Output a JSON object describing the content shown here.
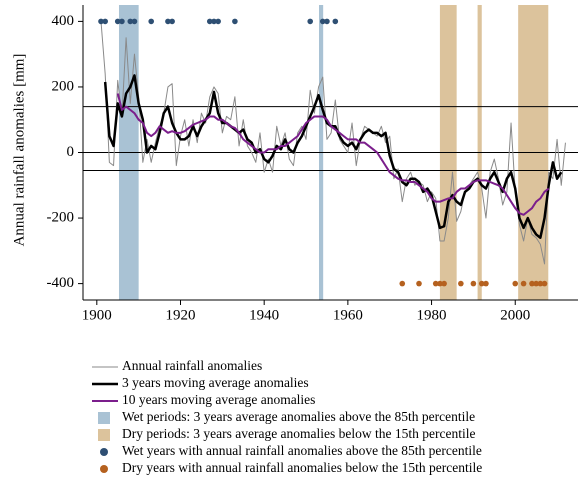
{
  "chart_data": {
    "type": "line",
    "y_label": "Annual rainfall anomalies [mm]",
    "xlim": [
      1896.7,
      2015
    ],
    "ylim": [
      -450,
      450
    ],
    "xticks": [
      1900,
      1920,
      1940,
      1960,
      1980,
      2000
    ],
    "yticks": [
      -400,
      -200,
      0,
      200,
      400
    ],
    "reference_lines": [
      140,
      -55
    ],
    "x": [
      1901,
      1902,
      1903,
      1904,
      1905,
      1906,
      1907,
      1908,
      1909,
      1910,
      1911,
      1912,
      1913,
      1914,
      1915,
      1916,
      1917,
      1918,
      1919,
      1920,
      1921,
      1922,
      1923,
      1924,
      1925,
      1926,
      1927,
      1928,
      1929,
      1930,
      1931,
      1932,
      1933,
      1934,
      1935,
      1936,
      1937,
      1938,
      1939,
      1940,
      1941,
      1942,
      1943,
      1944,
      1945,
      1946,
      1947,
      1948,
      1949,
      1950,
      1951,
      1952,
      1953,
      1954,
      1955,
      1956,
      1957,
      1958,
      1959,
      1960,
      1961,
      1962,
      1963,
      1964,
      1965,
      1966,
      1967,
      1968,
      1969,
      1970,
      1971,
      1972,
      1973,
      1974,
      1975,
      1976,
      1977,
      1978,
      1979,
      1980,
      1981,
      1982,
      1983,
      1984,
      1985,
      1986,
      1987,
      1988,
      1989,
      1990,
      1991,
      1992,
      1993,
      1994,
      1995,
      1996,
      1997,
      1998,
      1999,
      2000,
      2001,
      2002,
      2003,
      2004,
      2005,
      2006,
      2007,
      2008,
      2009,
      2010,
      2011,
      2012
    ],
    "series": [
      {
        "name": "Annual rainfall anomalies",
        "color": "#8a8a8a",
        "width": 1,
        "values": [
          400,
          240,
          -30,
          -40,
          220,
          110,
          350,
          150,
          300,
          170,
          -30,
          40,
          -30,
          30,
          80,
          120,
          200,
          210,
          -40,
          50,
          100,
          20,
          100,
          30,
          120,
          90,
          170,
          200,
          180,
          60,
          110,
          100,
          170,
          20,
          100,
          20,
          0,
          -30,
          60,
          -60,
          -20,
          -60,
          80,
          20,
          60,
          -20,
          -40,
          60,
          80,
          40,
          190,
          120,
          200,
          230,
          40,
          60,
          160,
          40,
          20,
          0,
          90,
          -40,
          40,
          80,
          70,
          60,
          50,
          80,
          30,
          50,
          -80,
          -50,
          -150,
          -80,
          -60,
          -100,
          -90,
          -100,
          -150,
          -120,
          -140,
          -270,
          -270,
          -200,
          -60,
          -210,
          -180,
          -120,
          -100,
          -80,
          -60,
          -110,
          -200,
          -60,
          -20,
          -80,
          -160,
          -120,
          90,
          -120,
          -220,
          -270,
          -200,
          -250,
          -260,
          -280,
          -340,
          -60,
          -80,
          40,
          -100,
          30
        ]
      },
      {
        "name": "3 years moving average anomalies",
        "color": "#000000",
        "width": 2.5,
        "values": [
          null,
          215,
          50,
          20,
          150,
          110,
          180,
          200,
          235,
          150,
          100,
          0,
          20,
          10,
          60,
          120,
          140,
          90,
          60,
          40,
          40,
          50,
          80,
          50,
          80,
          100,
          120,
          185,
          120,
          90,
          90,
          80,
          70,
          60,
          70,
          40,
          30,
          0,
          10,
          -20,
          -30,
          -10,
          20,
          10,
          40,
          10,
          0,
          30,
          50,
          80,
          110,
          140,
          175,
          130,
          90,
          80,
          80,
          50,
          30,
          20,
          30,
          10,
          40,
          60,
          70,
          60,
          60,
          50,
          60,
          -10,
          -50,
          -60,
          -90,
          -100,
          -80,
          -80,
          -90,
          -120,
          -110,
          -130,
          -180,
          -230,
          -225,
          -150,
          -130,
          -150,
          -160,
          -120,
          -110,
          -90,
          -80,
          -100,
          -110,
          -80,
          -60,
          -90,
          -120,
          -80,
          -60,
          -110,
          -200,
          -230,
          -200,
          -230,
          -250,
          -260,
          -200,
          -100,
          -30,
          -80,
          -60,
          null
        ]
      },
      {
        "name": "10 years moving average anomalies",
        "color": "#7b1e8c",
        "width": 2,
        "values": [
          null,
          null,
          null,
          null,
          180,
          130,
          140,
          130,
          120,
          100,
          90,
          60,
          50,
          60,
          80,
          70,
          60,
          65,
          60,
          60,
          65,
          75,
          85,
          90,
          95,
          100,
          110,
          110,
          100,
          100,
          90,
          80,
          75,
          60,
          40,
          30,
          20,
          10,
          0,
          0,
          10,
          10,
          10,
          20,
          20,
          30,
          40,
          50,
          70,
          90,
          100,
          110,
          110,
          110,
          100,
          80,
          70,
          60,
          50,
          40,
          40,
          40,
          30,
          30,
          20,
          10,
          0,
          -20,
          -40,
          -60,
          -70,
          -80,
          -85,
          -85,
          -90,
          -90,
          -100,
          -110,
          -120,
          -140,
          -150,
          -150,
          -145,
          -140,
          -140,
          -120,
          -110,
          -110,
          -100,
          -90,
          -85,
          -85,
          -85,
          -90,
          -95,
          -100,
          -110,
          -130,
          -150,
          -170,
          -185,
          -190,
          -180,
          -170,
          -150,
          -140,
          -120,
          -110,
          null,
          null,
          null,
          null
        ]
      }
    ],
    "periods": [
      {
        "name": "Wet periods: 3 years average anomalies above the 85th percentile",
        "color": "#a9c2d4",
        "ranges": [
          [
            1905.3,
            1910
          ],
          [
            1953.1,
            1954.1
          ]
        ]
      },
      {
        "name": "Dry periods: 3 years average anomalies below the 15th percentile",
        "color": "#dcc39c",
        "ranges": [
          [
            1982,
            1986
          ],
          [
            1991,
            1992
          ],
          [
            2000.7,
            2007.9
          ]
        ]
      }
    ],
    "markers": [
      {
        "name": "Wet years with annual rainfall anomalies above the 85th percentile",
        "color": "#2e4f73",
        "x": [
          1901,
          1902,
          1905,
          1906,
          1908,
          1909,
          1913,
          1917,
          1918,
          1927,
          1928,
          1929,
          1933,
          1951,
          1954,
          1955,
          1957
        ],
        "values": [
          400,
          400,
          400,
          400,
          400,
          400,
          400,
          400,
          400,
          400,
          400,
          400,
          400,
          400,
          400,
          400,
          400
        ]
      },
      {
        "name": "Dry years with annual rainfall anomalies below the 15th percentile",
        "color": "#b5611f",
        "x": [
          1973,
          1977,
          1981,
          1982,
          1983,
          1987,
          1990,
          1992,
          1993,
          2000,
          2002,
          2004,
          2005,
          2006,
          2007
        ],
        "values": [
          -400,
          -400,
          -400,
          -400,
          -400,
          -400,
          -400,
          -400,
          -400,
          -400,
          -400,
          -400,
          -400,
          -400,
          -400
        ]
      }
    ]
  }
}
